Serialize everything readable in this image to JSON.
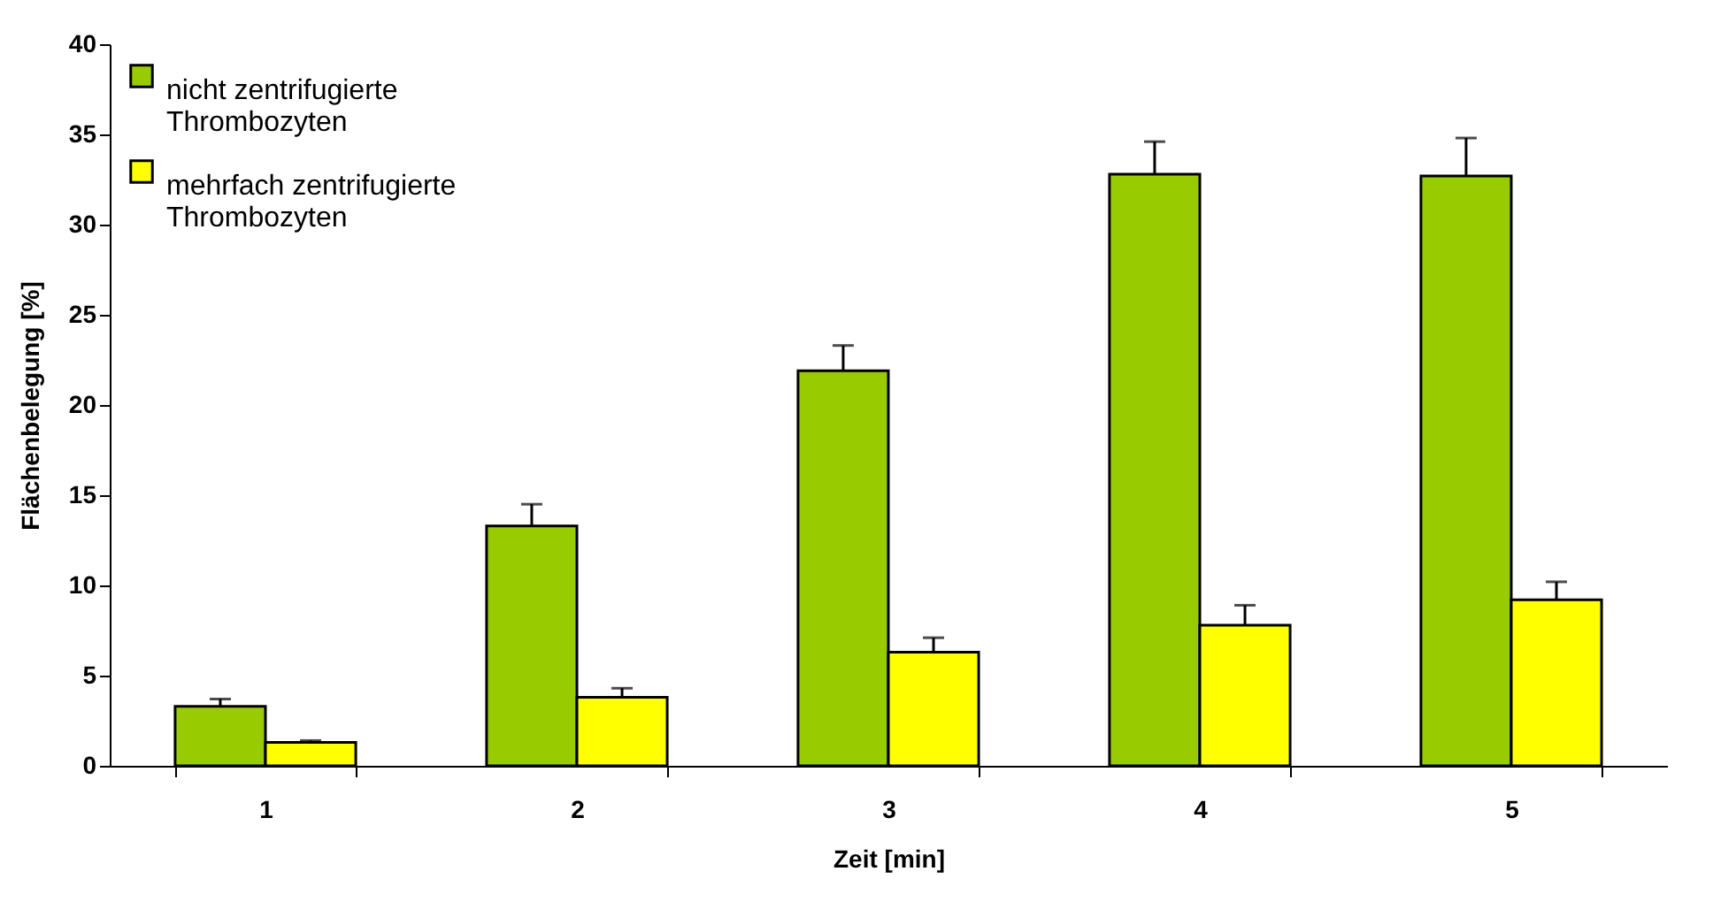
{
  "chart_data": {
    "type": "bar",
    "xlabel": "Zeit [min]",
    "ylabel": "Flächenbelegung [%]",
    "categories": [
      "1",
      "2",
      "3",
      "4",
      "5"
    ],
    "series": [
      {
        "name": "nicht zentrifugierte Thrombozyten",
        "color": "#99cc00",
        "values": [
          3.3,
          13.3,
          21.9,
          32.8,
          32.7
        ],
        "errors": [
          [
            3.3,
            3.7
          ],
          [
            13.3,
            14.5
          ],
          [
            21.9,
            23.3
          ],
          [
            32.8,
            34.6
          ],
          [
            32.7,
            34.8
          ]
        ]
      },
      {
        "name": "mehrfach zentrifugierte Thrombozyten",
        "color": "#ffff00",
        "values": [
          1.3,
          3.8,
          6.3,
          7.8,
          9.2
        ],
        "errors": [
          [
            1.3,
            1.4
          ],
          [
            3.8,
            4.3
          ],
          [
            6.3,
            7.1
          ],
          [
            7.8,
            8.9
          ],
          [
            9.2,
            10.2
          ]
        ]
      }
    ],
    "ylim": [
      0,
      40
    ],
    "yticks": [
      0,
      5,
      10,
      15,
      20,
      25,
      30,
      35,
      40
    ],
    "grid": false,
    "legend": "top left"
  }
}
